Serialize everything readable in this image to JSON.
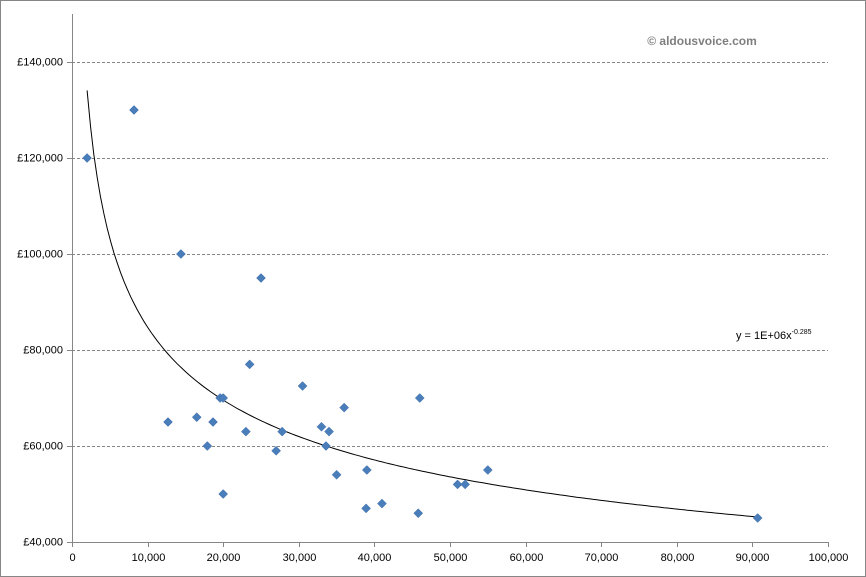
{
  "chart_data": {
    "type": "scatter",
    "watermark": "© aldousvoice.com",
    "x": [
      2000,
      8200,
      12700,
      14400,
      16500,
      17900,
      18650,
      19600,
      20000,
      20000,
      23000,
      23500,
      25000,
      27000,
      27800,
      30500,
      33000,
      33600,
      34000,
      35000,
      36000,
      38900,
      39000,
      41000,
      45800,
      46000,
      51000,
      52000,
      55000,
      90700
    ],
    "values": [
      120000,
      130000,
      65000,
      100000,
      66000,
      60000,
      65000,
      70000,
      70000,
      50000,
      63000,
      77000,
      95000,
      59000,
      63000,
      72500,
      64000,
      60000,
      63000,
      54000,
      68000,
      47000,
      55000,
      48000,
      46000,
      70000,
      52000,
      52000,
      55000,
      45000
    ],
    "color": "#4a7ebb",
    "xlim": [
      0,
      100000
    ],
    "xticks": [
      0,
      {
        "value": 10000,
        "label": "10,000"
      },
      {
        "value": 20000,
        "label": "20,000"
      },
      {
        "value": 30000,
        "label": "30,000"
      },
      {
        "value": 40000,
        "label": "40,000"
      },
      {
        "value": 50000,
        "label": "50,000"
      },
      {
        "value": 60000,
        "label": "60,000"
      },
      {
        "value": 70000,
        "label": "70,000"
      },
      {
        "value": 80000,
        "label": "80,000"
      },
      {
        "value": 90000,
        "label": "90,000"
      },
      {
        "value": 100000,
        "label": "100,000"
      }
    ],
    "ylim": [
      40000,
      150000
    ],
    "yticks": [
      {
        "value": 40000,
        "label": "£40,000"
      },
      {
        "value": 60000,
        "label": "£60,000"
      },
      {
        "value": 80000,
        "label": "£80,000"
      },
      {
        "value": 100000,
        "label": "£100,000"
      },
      {
        "value": 120000,
        "label": "£120,000"
      },
      {
        "value": 140000,
        "label": "£140,000"
      }
    ],
    "grid": true,
    "trendline": {
      "label": "y = 1E+06x",
      "coefficient": 1170000,
      "exponent": -0.285,
      "color": "#000000"
    }
  }
}
